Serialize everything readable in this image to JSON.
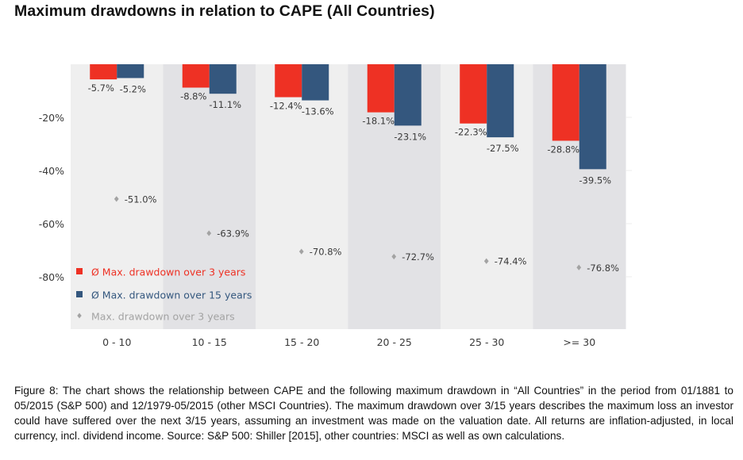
{
  "title": "Maximum drawdowns in relation to CAPE (All Countries)",
  "caption": "Figure 8: The chart shows the relationship between CAPE and the following maximum drawdown in “All Countries” in the period from 01/1881 to 05/2015 (S&P 500) and 12/1979-05/2015 (other MSCI Countries). The maximum drawdown over 3/15 years describes the maximum loss an investor could have suffered over the next 3/15 years, assuming an investment was made on the valuation date. All returns are inflation-adjusted, in local currency, incl. dividend income. Source: S&P 500: Shiller [2015], other countries: MSCI as well as own calculations.",
  "chart_data": {
    "type": "bar",
    "title": "Maximum drawdowns in relation to CAPE (All Countries)",
    "xlabel": "",
    "ylabel": "",
    "categories": [
      "0 - 10",
      "10 - 15",
      "15 - 20",
      "20 - 25",
      "25 - 30",
      ">= 30"
    ],
    "ylim": [
      -100,
      0
    ],
    "yticks": [
      -20,
      -40,
      -60,
      -80
    ],
    "ytick_labels": [
      "-20%",
      "-40%",
      "-60%",
      "-80%"
    ],
    "grid": false,
    "legend_position": "bottom-left",
    "series": [
      {
        "name": "Ø Max. drawdown over 3 years",
        "type": "bar",
        "color": "#ee3124",
        "values": [
          -5.7,
          -8.8,
          -12.4,
          -18.1,
          -22.3,
          -28.8
        ],
        "labels": [
          "-5.7%",
          "-8.8%",
          "-12.4%",
          "-18.1%",
          "-22.3%",
          "-28.8%"
        ]
      },
      {
        "name": "Ø Max. drawdown over 15 years",
        "type": "bar",
        "color": "#34577e",
        "values": [
          -5.2,
          -11.1,
          -13.6,
          -23.1,
          -27.5,
          -39.5
        ],
        "labels": [
          "-5.2%",
          "-11.1%",
          "-13.6%",
          "-23.1%",
          "-27.5%",
          "-39.5%"
        ]
      },
      {
        "name": "Max. drawdown over 3 years",
        "type": "scatter",
        "marker": "diamond",
        "color": "#a3a3a3",
        "values": [
          -51.0,
          -63.9,
          -70.8,
          -72.7,
          -74.4,
          -76.8
        ],
        "labels": [
          "-51.0%",
          "-63.9%",
          "-70.8%",
          "-72.7%",
          "-74.4%",
          "-76.8%"
        ]
      }
    ],
    "band_colors": [
      "#efefef",
      "#e2e2e5"
    ],
    "label_color": "#3a3a3a",
    "legend_text_colors": [
      "#ee3124",
      "#34577e",
      "#a3a3a3"
    ]
  }
}
